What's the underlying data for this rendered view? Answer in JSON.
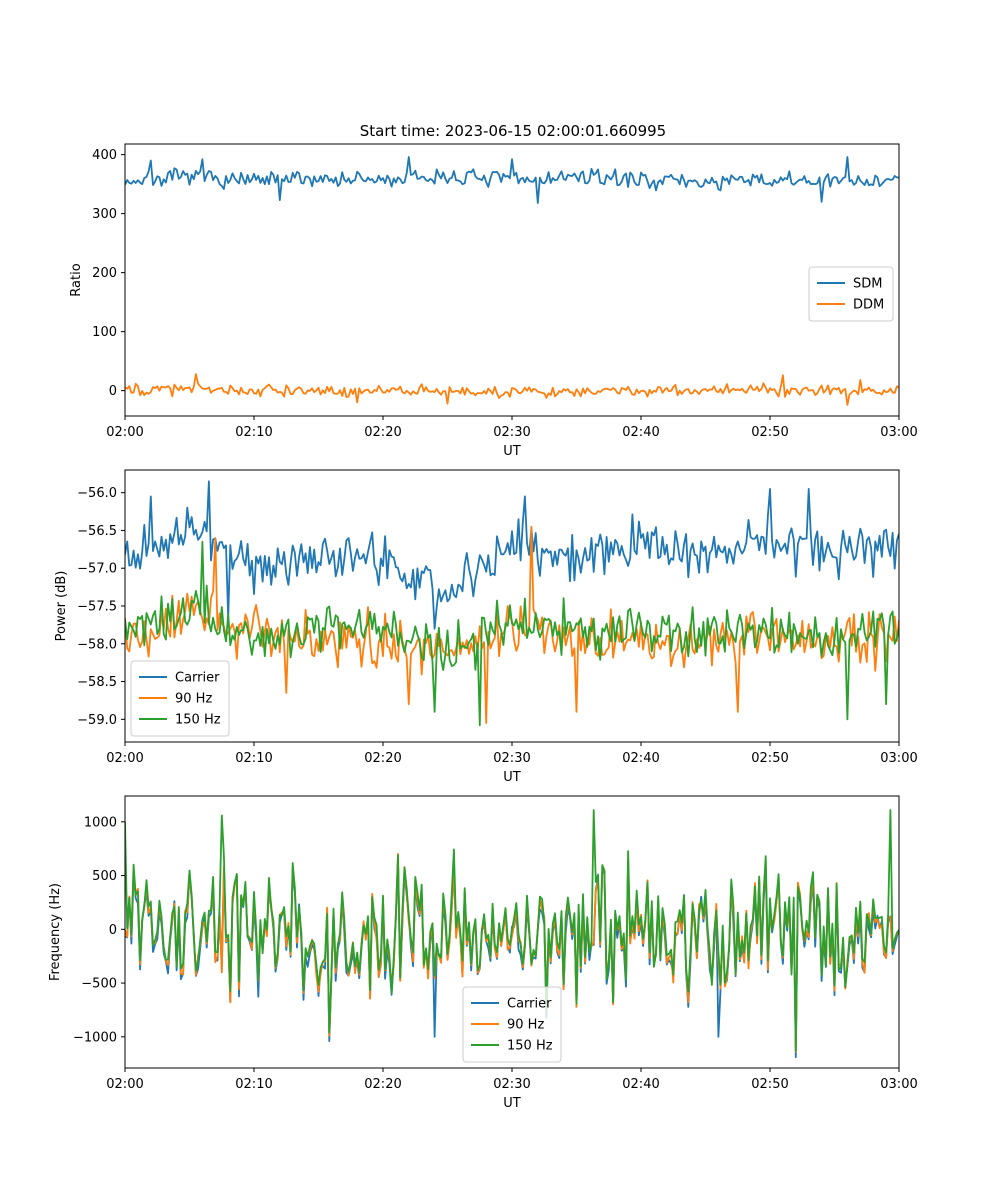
{
  "figure_title": "Start time: 2023-06-15 02:00:01.660995",
  "colors": {
    "blue": "#1f77b4",
    "orange": "#ff7f0e",
    "green": "#2ca02c"
  },
  "chart_data": [
    {
      "type": "line",
      "title": "Start time: 2023-06-15 02:00:01.660995",
      "xlabel": "UT",
      "ylabel": "Ratio",
      "xlim": [
        "02:00",
        "03:00"
      ],
      "ylim": [
        -43,
        418
      ],
      "xticks": [
        "02:00",
        "02:10",
        "02:20",
        "02:30",
        "02:40",
        "02:50",
        "03:00"
      ],
      "yticks": [
        0,
        100,
        200,
        300,
        400
      ],
      "ytick_labels": [
        "0",
        "100",
        "200",
        "300",
        "400"
      ],
      "grid": false,
      "legend": "center-right",
      "series": [
        {
          "name": "SDM",
          "color": "#1f77b4",
          "x": [
            "02:00",
            "02:05",
            "02:10",
            "02:15",
            "02:20",
            "02:25",
            "02:30",
            "02:35",
            "02:40",
            "02:45",
            "02:50",
            "02:55",
            "03:00"
          ],
          "y": [
            355,
            362,
            355,
            360,
            356,
            363,
            357,
            362,
            358,
            353,
            356,
            354,
            358
          ],
          "noise": 12,
          "spikes": [
            [
              2,
              390
            ],
            [
              6,
              392
            ],
            [
              22,
              396
            ],
            [
              30,
              392
            ],
            [
              56,
              396
            ],
            [
              12,
              323
            ],
            [
              32,
              318
            ],
            [
              54,
              320
            ]
          ]
        },
        {
          "name": "DDM",
          "color": "#ff7f0e",
          "x": [
            "02:00",
            "02:05",
            "02:10",
            "02:15",
            "02:20",
            "02:25",
            "02:30",
            "02:35",
            "02:40",
            "02:45",
            "02:50",
            "02:55",
            "03:00"
          ],
          "y": [
            0,
            3,
            0,
            -2,
            1,
            0,
            -1,
            0,
            1,
            0,
            2,
            0,
            1
          ],
          "noise": 8,
          "spikes": [
            [
              5.5,
              28
            ],
            [
              51,
              26
            ],
            [
              57,
              18
            ],
            [
              25,
              -22
            ],
            [
              56,
              -24
            ],
            [
              18,
              -20
            ]
          ]
        }
      ]
    },
    {
      "type": "line",
      "title": "",
      "xlabel": "UT",
      "ylabel": "Power (dB)",
      "xlim": [
        "02:00",
        "03:00"
      ],
      "ylim": [
        -59.3,
        -55.7
      ],
      "xticks": [
        "02:00",
        "02:10",
        "02:20",
        "02:30",
        "02:40",
        "02:50",
        "03:00"
      ],
      "yticks": [
        -59.0,
        -58.5,
        -58.0,
        -57.5,
        -57.0,
        -56.5,
        -56.0
      ],
      "ytick_labels": [
        "−59.0",
        "−58.5",
        "−58.0",
        "−57.5",
        "−57.0",
        "−56.5",
        "−56.0"
      ],
      "grid": false,
      "legend": "lower-left",
      "series": [
        {
          "name": "Carrier",
          "color": "#1f77b4",
          "x": [
            "02:00",
            "02:05",
            "02:10",
            "02:15",
            "02:20",
            "02:25",
            "02:30",
            "02:35",
            "02:40",
            "02:45",
            "02:50",
            "02:55",
            "03:00"
          ],
          "y": [
            -56.9,
            -56.5,
            -56.9,
            -56.8,
            -56.9,
            -57.3,
            -56.6,
            -56.9,
            -56.7,
            -56.8,
            -56.6,
            -56.8,
            -56.7
          ],
          "noise": 0.28,
          "spikes": [
            [
              6.5,
              -55.85
            ],
            [
              2,
              -56.05
            ],
            [
              31,
              -56.05
            ],
            [
              50,
              -55.95
            ],
            [
              53,
              -55.95
            ],
            [
              24,
              -57.8
            ],
            [
              8,
              -57.65
            ]
          ]
        },
        {
          "name": "90 Hz",
          "color": "#ff7f0e",
          "x": [
            "02:00",
            "02:05",
            "02:10",
            "02:15",
            "02:20",
            "02:25",
            "02:30",
            "02:35",
            "02:40",
            "02:45",
            "02:50",
            "02:55",
            "03:00"
          ],
          "y": [
            -57.9,
            -57.6,
            -57.9,
            -57.9,
            -58.0,
            -58.1,
            -57.8,
            -57.9,
            -58.0,
            -58.0,
            -57.9,
            -58.0,
            -57.9
          ],
          "noise": 0.3,
          "spikes": [
            [
              31.5,
              -56.45
            ],
            [
              7,
              -56.6
            ],
            [
              28,
              -59.05
            ],
            [
              35,
              -58.9
            ],
            [
              47.5,
              -58.9
            ],
            [
              12.5,
              -58.65
            ],
            [
              22,
              -58.8
            ]
          ]
        },
        {
          "name": "150 Hz",
          "color": "#2ca02c",
          "x": [
            "02:00",
            "02:05",
            "02:10",
            "02:15",
            "02:20",
            "02:25",
            "02:30",
            "02:35",
            "02:40",
            "02:45",
            "02:50",
            "02:55",
            "03:00"
          ],
          "y": [
            -57.8,
            -57.6,
            -57.9,
            -57.8,
            -57.8,
            -58.1,
            -57.7,
            -57.8,
            -57.9,
            -57.8,
            -57.9,
            -57.9,
            -57.7
          ],
          "noise": 0.27,
          "spikes": [
            [
              27.5,
              -59.08
            ],
            [
              6,
              -56.65
            ],
            [
              56,
              -59.0
            ],
            [
              59,
              -58.8
            ],
            [
              24,
              -58.9
            ]
          ]
        }
      ]
    },
    {
      "type": "line",
      "title": "",
      "xlabel": "UT",
      "ylabel": "Frequency (Hz)",
      "xlim": [
        "02:00",
        "03:00"
      ],
      "ylim": [
        -1290,
        1240
      ],
      "xticks": [
        "02:00",
        "02:10",
        "02:20",
        "02:30",
        "02:40",
        "02:50",
        "03:00"
      ],
      "yticks": [
        -1000,
        -500,
        0,
        500,
        1000
      ],
      "ytick_labels": [
        "−1000",
        "−500",
        "0",
        "500",
        "1000"
      ],
      "grid": false,
      "legend": "lower-center",
      "series": [
        {
          "name": "Carrier",
          "color": "#1f77b4",
          "x": [
            "02:00",
            "02:05",
            "02:10",
            "02:15",
            "02:20",
            "02:25",
            "02:30",
            "02:35",
            "02:40",
            "02:45",
            "02:50",
            "02:55",
            "03:00"
          ],
          "y": [
            -40,
            -70,
            -50,
            -60,
            -40,
            -60,
            -50,
            -70,
            -40,
            -60,
            -50,
            -60,
            -50
          ],
          "noise": 520,
          "spikes": [
            [
              15.8,
              -1040
            ],
            [
              52,
              -1190
            ],
            [
              24,
              -1000
            ],
            [
              46,
              -1000
            ]
          ]
        },
        {
          "name": "90 Hz",
          "color": "#ff7f0e",
          "x": [
            "02:00",
            "02:05",
            "02:10",
            "02:15",
            "02:20",
            "02:25",
            "02:30",
            "02:35",
            "02:40",
            "02:45",
            "02:50",
            "02:55",
            "03:00"
          ],
          "y": [
            -10,
            -40,
            -20,
            -30,
            -10,
            -30,
            -20,
            -40,
            -10,
            -30,
            -20,
            -30,
            -20
          ],
          "noise": 520,
          "spikes": [
            [
              15.8,
              -990
            ],
            [
              52,
              -1140
            ]
          ]
        },
        {
          "name": "150 Hz",
          "color": "#2ca02c",
          "x": [
            "02:00",
            "02:05",
            "02:10",
            "02:15",
            "02:20",
            "02:25",
            "02:30",
            "02:35",
            "02:40",
            "02:45",
            "02:50",
            "02:55",
            "03:00"
          ],
          "y": [
            20,
            -10,
            10,
            0,
            20,
            0,
            10,
            -10,
            20,
            0,
            10,
            0,
            10
          ],
          "noise": 520,
          "spikes": [
            [
              0,
              1000
            ],
            [
              7.5,
              1060
            ],
            [
              36.3,
              1110
            ],
            [
              59.3,
              1110
            ],
            [
              52,
              -1130
            ],
            [
              15.8,
              -960
            ]
          ]
        }
      ]
    }
  ]
}
